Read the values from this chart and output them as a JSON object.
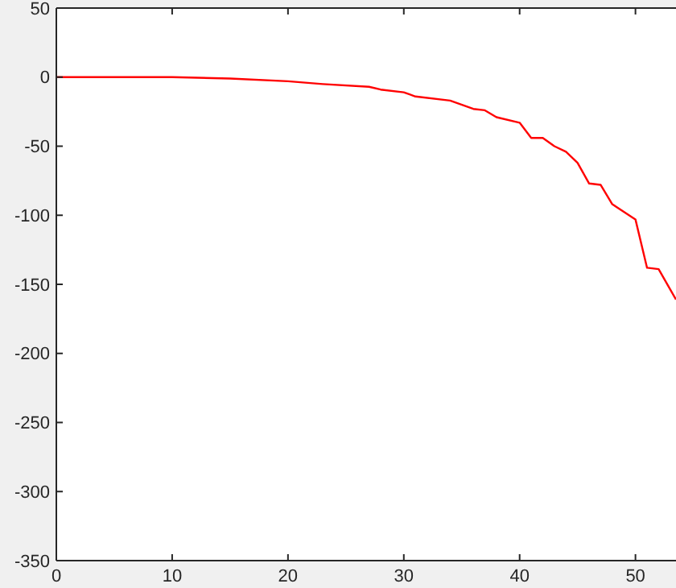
{
  "chart_data": {
    "type": "line",
    "x": [
      0,
      10,
      15,
      20,
      23,
      27,
      28,
      30,
      31,
      34,
      36,
      37,
      38,
      40,
      41,
      42,
      43,
      44,
      45,
      46,
      47,
      48,
      50,
      51,
      52,
      53.5
    ],
    "series": [
      {
        "color": "#ff0000",
        "values": [
          0,
          0,
          -1,
          -3,
          -5,
          -7,
          -9,
          -11,
          -14,
          -17,
          -23,
          -24,
          -29,
          -33,
          -44,
          -44,
          -50,
          -54,
          -62,
          -77,
          -78,
          -92,
          -103,
          -138,
          -139,
          -161
        ]
      }
    ],
    "xlim": [
      0,
      53.5
    ],
    "xticks": [
      0,
      10,
      20,
      30,
      40,
      50
    ],
    "ylim": [
      -350,
      50
    ],
    "yticks": [
      -350,
      -300,
      -250,
      -200,
      -150,
      -100,
      -50,
      0,
      50
    ],
    "grid": false,
    "marker": "none",
    "line_style": "solid"
  }
}
